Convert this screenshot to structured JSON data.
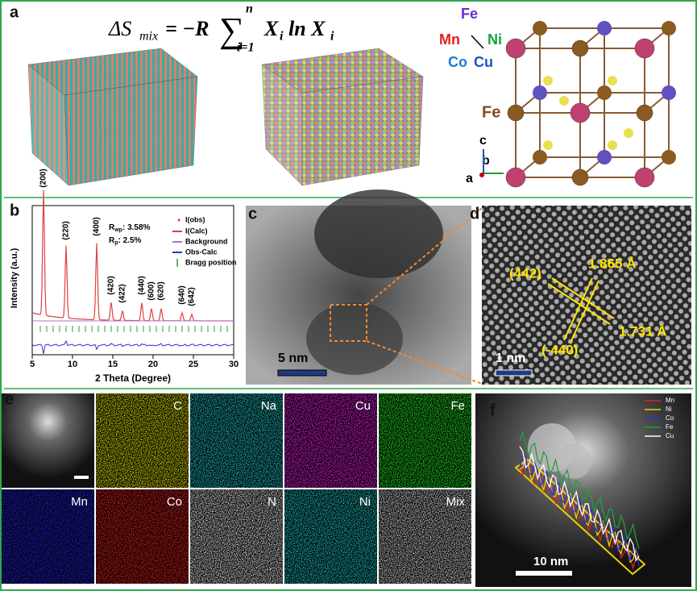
{
  "panel_a": {
    "label": "a",
    "formula": {
      "lhs": "ΔS",
      "lhs_sub": "mix",
      "eq": "= −R",
      "sum": "∑",
      "sum_top": "n",
      "sum_bottom": "i=1",
      "x1": "X",
      "x1_sub": "i",
      "ln": "ln X",
      "x2_sub": "i"
    },
    "elements": [
      "Fe",
      "Mn",
      "Ni",
      "Co",
      "Cu"
    ],
    "structure_label": "Fe",
    "axes": [
      "c",
      "b",
      "a"
    ]
  },
  "panel_b": {
    "label": "b",
    "peaks": [
      "(200)",
      "(220)",
      "(400)",
      "(420)",
      "(422)",
      "(440)",
      "(600)",
      "(620)",
      "(640)",
      "(642)"
    ],
    "fit": [
      {
        "symbol": "R",
        "sub": "wp",
        "text": ": 3.58%"
      },
      {
        "symbol": "R",
        "sub": "p",
        "text": ": 2.5%"
      }
    ],
    "legend": [
      "I(obs)",
      "I(Calc)",
      "Background",
      "Obs-Calc",
      "Bragg position"
    ],
    "y_label": "Intensity (a.u.)",
    "x_label": "2 Theta (Degree)",
    "xlim": [
      5,
      30
    ],
    "xticks": [
      5,
      10,
      15,
      20,
      25,
      30
    ]
  },
  "panel_c": {
    "label": "c",
    "scale": "5 nm"
  },
  "panel_d": {
    "label": "d",
    "planes": [
      "(442)",
      "(-440)"
    ],
    "spacings": [
      "1.865 Å",
      "1.731 Å"
    ],
    "scale": "1 nm"
  },
  "panel_e": {
    "label": "e",
    "maps": [
      "C",
      "Na",
      "Cu",
      "Fe",
      "Mn",
      "Co",
      "N",
      "Ni",
      "Mix"
    ]
  },
  "panel_f": {
    "label": "f",
    "legend": [
      "Mn",
      "Ni",
      "Co",
      "Fe",
      "Cu"
    ],
    "scale": "10 nm"
  }
}
